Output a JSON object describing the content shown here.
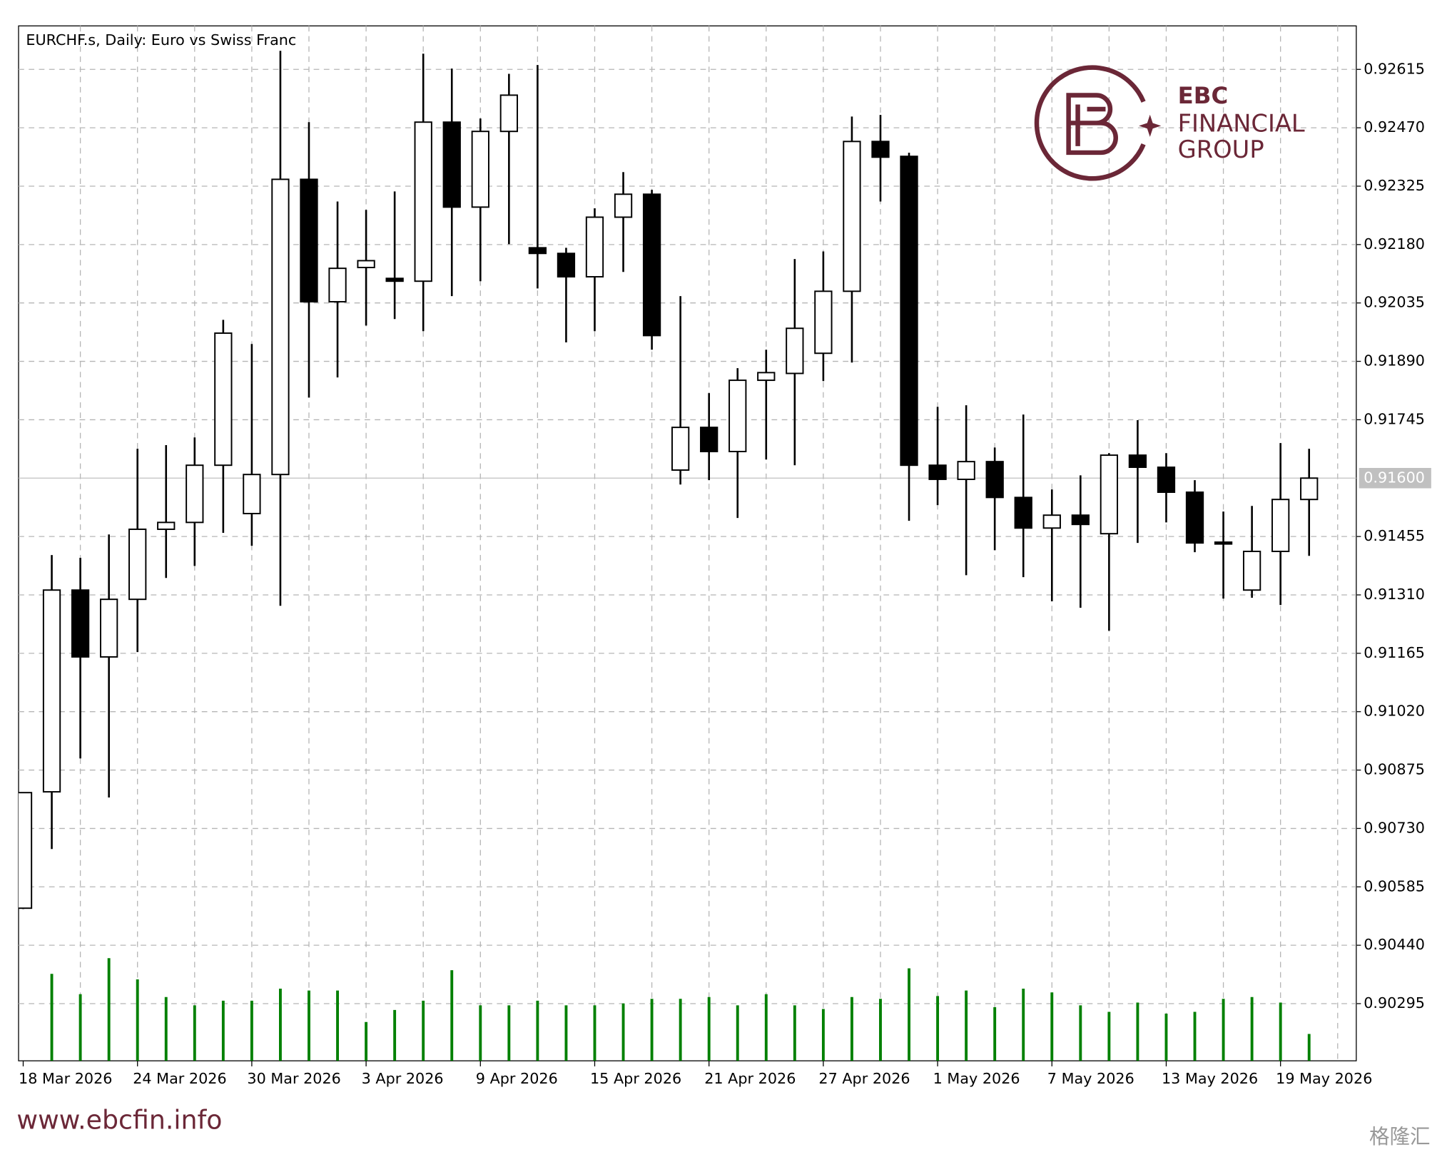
{
  "chart_data": {
    "type": "candlestick",
    "title": "EURCHF.s, Daily:  Euro vs Swiss Franc",
    "categories": [
      "18 Mar 2026",
      null,
      null,
      null,
      "24 Mar 2026",
      null,
      null,
      null,
      "30 Mar 2026",
      null,
      null,
      null,
      "3 Apr 2026",
      null,
      null,
      null,
      "9 Apr 2026",
      null,
      null,
      null,
      "15 Apr 2026",
      null,
      null,
      null,
      "21 Apr 2026",
      null,
      null,
      null,
      "27 Apr 2026",
      null,
      null,
      null,
      "1 May 2026",
      null,
      null,
      null,
      "7 May 2026",
      null,
      null,
      null,
      "13 May 2026",
      null,
      null,
      null,
      "19 May 2026",
      null
    ],
    "open": [
      0.90532,
      0.90821,
      0.91322,
      0.91156,
      0.91299,
      0.91473,
      0.9149,
      0.91632,
      0.91512,
      0.91609,
      0.92342,
      0.92038,
      0.92123,
      0.92096,
      0.92089,
      0.92484,
      0.92273,
      0.92461,
      0.92172,
      0.92158,
      0.921,
      0.92248,
      0.92305,
      0.9162,
      0.91726,
      0.91666,
      0.91843,
      0.9186,
      0.9191,
      0.92064,
      0.92436,
      0.92399,
      0.91632,
      0.91597,
      0.91641,
      0.91552,
      0.91476,
      0.91508,
      0.91462,
      0.91657,
      0.91627,
      0.91565,
      0.91441,
      0.91322,
      0.91418,
      0.91547
    ],
    "high": [
      0.90819,
      0.91409,
      0.91402,
      0.9146,
      0.91673,
      0.91682,
      0.91701,
      0.91993,
      0.91933,
      0.92661,
      0.92484,
      0.92287,
      0.92266,
      0.92312,
      0.92654,
      0.92617,
      0.92493,
      0.92604,
      0.92626,
      0.92172,
      0.9227,
      0.9236,
      0.92316,
      0.92052,
      0.91811,
      0.91873,
      0.91919,
      0.92144,
      0.92163,
      0.92498,
      0.92502,
      0.92408,
      0.91777,
      0.91781,
      0.91676,
      0.91758,
      0.91572,
      0.91607,
      0.91662,
      0.91744,
      0.91662,
      0.91595,
      0.91517,
      0.91531,
      0.91687,
      0.91673
    ],
    "low": [
      0.9053,
      0.90679,
      0.90904,
      0.90807,
      0.91168,
      0.91352,
      0.91382,
      0.91464,
      0.91432,
      0.91283,
      0.918,
      0.9185,
      0.91979,
      0.91995,
      0.91965,
      0.92052,
      0.92089,
      0.92181,
      0.92071,
      0.91937,
      0.91965,
      0.92112,
      0.91919,
      0.91584,
      0.91595,
      0.91501,
      0.91646,
      0.91632,
      0.91841,
      0.91887,
      0.92287,
      0.91494,
      0.91533,
      0.91359,
      0.91421,
      0.91354,
      0.91294,
      0.91278,
      0.91221,
      0.91439,
      0.9149,
      0.91416,
      0.91301,
      0.91303,
      0.91285,
      0.91407
    ],
    "close": [
      0.90819,
      0.91322,
      0.91156,
      0.91299,
      0.91473,
      0.9149,
      0.91632,
      0.9196,
      0.91609,
      0.92342,
      0.92038,
      0.92121,
      0.9214,
      0.92089,
      0.92484,
      0.92273,
      0.92461,
      0.92551,
      0.92158,
      0.921,
      0.92248,
      0.92305,
      0.91954,
      0.91726,
      0.91666,
      0.91843,
      0.91862,
      0.91972,
      0.92064,
      0.92436,
      0.92397,
      0.91632,
      0.91597,
      0.91641,
      0.91552,
      0.91476,
      0.91508,
      0.91485,
      0.91657,
      0.91627,
      0.91565,
      0.91439,
      0.91439,
      0.91418,
      0.91547,
      0.916
    ],
    "volume": [
      null,
      94,
      72,
      111,
      88,
      69,
      60,
      65,
      65,
      78,
      76,
      76,
      42,
      55,
      65,
      98,
      60,
      60,
      65,
      60,
      60,
      62,
      67,
      67,
      69,
      60,
      72,
      60,
      56,
      69,
      67,
      100,
      70,
      76,
      58,
      78,
      74,
      60,
      53,
      63,
      51,
      53,
      67,
      69,
      63,
      29
    ],
    "volume_lim": [
      0,
      120
    ],
    "up_color": "#ffffff",
    "down_color": "#000000",
    "volume_color": "#008000",
    "ylim": [
      0.90153,
      0.92723
    ],
    "yticks": [
      0.92615,
      {
        "value": 0.9247,
        "label": "0.92470"
      },
      0.92325,
      {
        "value": 0.9218,
        "label": "0.92180"
      },
      0.92035,
      {
        "value": 0.9189,
        "label": "0.91890"
      },
      0.91745,
      0.91455,
      {
        "value": 0.9131,
        "label": "0.91310"
      },
      0.91165,
      {
        "value": 0.9102,
        "label": "0.91020"
      },
      0.90875,
      {
        "value": 0.9073,
        "label": "0.90730"
      },
      0.90585,
      {
        "value": 0.9044,
        "label": "0.90440"
      },
      0.90295
    ],
    "current_price": {
      "value": 0.916,
      "label": "0.91600"
    },
    "grid": true
  },
  "brand": {
    "name": "EBC",
    "line2": "FINANCIAL",
    "line3": "GROUP"
  },
  "website": "www.ebcfin.info",
  "watermark": "格隆汇"
}
